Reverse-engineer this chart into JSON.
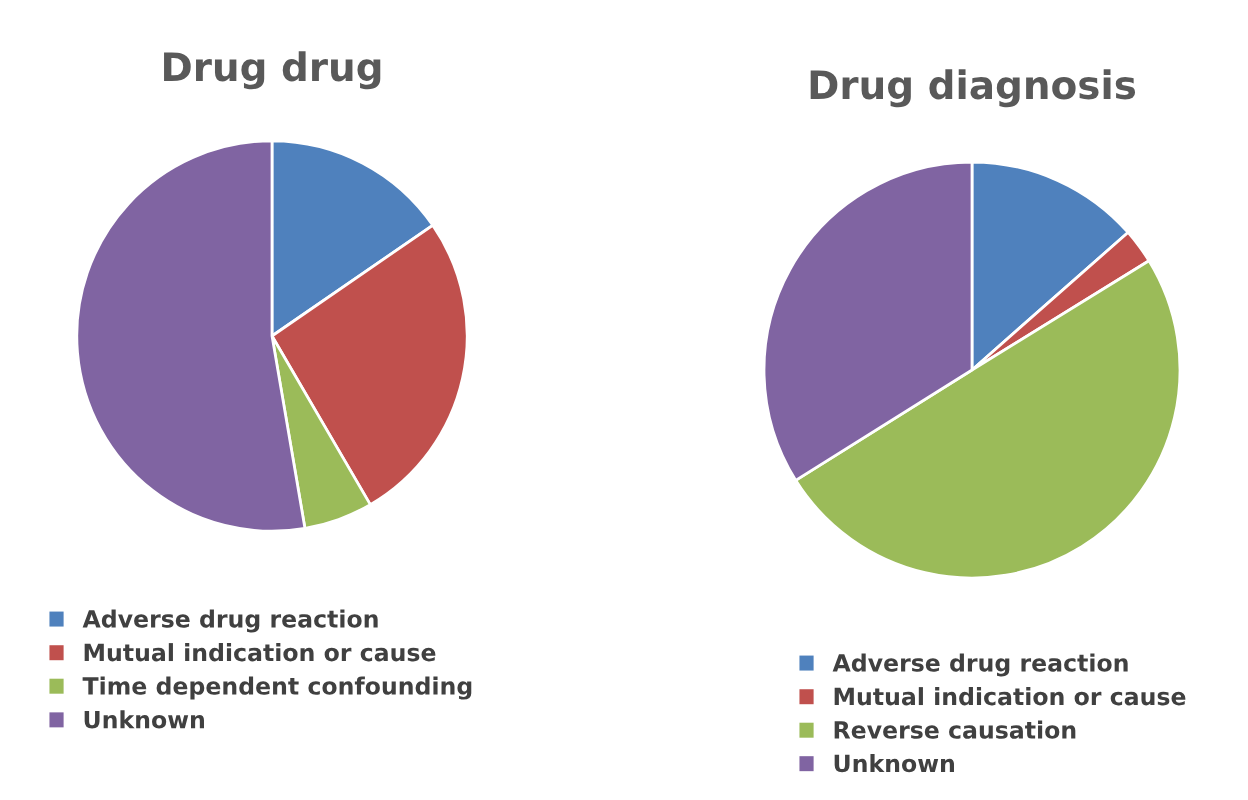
{
  "chart_data": [
    {
      "type": "pie",
      "title": "Drug drug",
      "categories": [
        "Adverse drug reaction",
        "Mutual indication or cause",
        "Time dependent confounding",
        "Unknown"
      ],
      "values": [
        15.4,
        26.2,
        5.7,
        52.7
      ],
      "colors": [
        "#4f81bd",
        "#c0504d",
        "#9bbb59",
        "#8064a2"
      ],
      "legend": "bottom"
    },
    {
      "type": "pie",
      "title": "Drug diagnosis",
      "categories": [
        "Adverse drug reaction",
        "Mutual indication or cause",
        "Reverse causation",
        "Unknown"
      ],
      "values": [
        13.5,
        2.7,
        49.9,
        33.9
      ],
      "colors": [
        "#4f81bd",
        "#c0504d",
        "#9bbb59",
        "#8064a2"
      ],
      "legend": "bottom"
    }
  ]
}
